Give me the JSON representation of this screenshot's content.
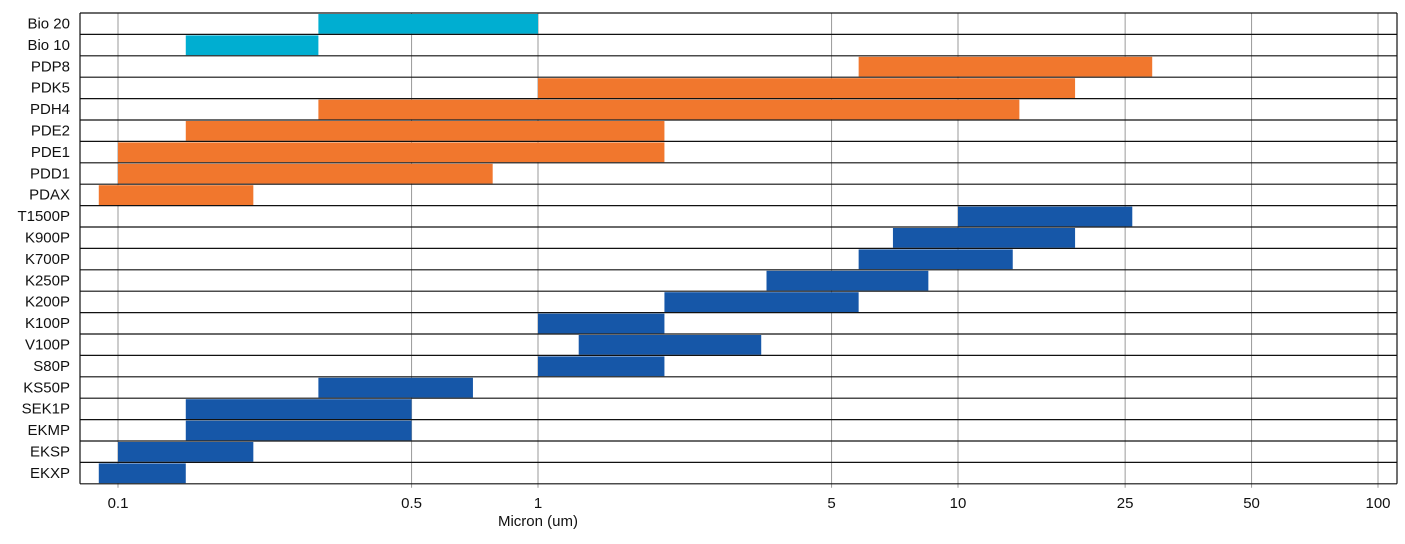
{
  "chart_data": {
    "type": "bar",
    "subtype": "floating-horizontal-range",
    "xlabel": "Micron (um)",
    "x_scale": "log",
    "xlim": [
      0.08,
      110
    ],
    "x_ticks": [
      0.1,
      0.5,
      1,
      5,
      10,
      25,
      50,
      100
    ],
    "x_tick_labels": [
      "0.1",
      "0.5",
      "1",
      "5",
      "10",
      "25",
      "50",
      "100"
    ],
    "grid": true,
    "colors": {
      "bio": "#00AED1",
      "pd": "#F1772D",
      "standard": "#1657A8",
      "grid": "#9a9a9a",
      "row_line": "#111111"
    },
    "categories": [
      "Bio 20",
      "Bio 10",
      "PDP8",
      "PDK5",
      "PDH4",
      "PDE2",
      "PDE1",
      "PDD1",
      "PDAX",
      "T1500P",
      "K900P",
      "K700P",
      "K250P",
      "K200P",
      "K100P",
      "V100P",
      "S80P",
      "KS50P",
      "SEK1P",
      "EKMP",
      "EKSP",
      "EKXP"
    ],
    "ranges": [
      {
        "label": "Bio 20",
        "min": 0.3,
        "max": 1.0,
        "group": "bio"
      },
      {
        "label": "Bio 10",
        "min": 0.145,
        "max": 0.3,
        "group": "bio"
      },
      {
        "label": "PDP8",
        "min": 5.8,
        "max": 29,
        "group": "pd"
      },
      {
        "label": "PDK5",
        "min": 1.0,
        "max": 19,
        "group": "pd"
      },
      {
        "label": "PDH4",
        "min": 0.3,
        "max": 14,
        "group": "pd"
      },
      {
        "label": "PDE2",
        "min": 0.145,
        "max": 2.0,
        "group": "pd"
      },
      {
        "label": "PDE1",
        "min": 0.1,
        "max": 2.0,
        "group": "pd"
      },
      {
        "label": "PDD1",
        "min": 0.1,
        "max": 0.78,
        "group": "pd"
      },
      {
        "label": "PDAX",
        "min": 0.09,
        "max": 0.21,
        "group": "pd"
      },
      {
        "label": "T1500P",
        "min": 10,
        "max": 26,
        "group": "standard"
      },
      {
        "label": "K900P",
        "min": 7,
        "max": 19,
        "group": "standard"
      },
      {
        "label": "K700P",
        "min": 5.8,
        "max": 13.5,
        "group": "standard"
      },
      {
        "label": "K250P",
        "min": 3.5,
        "max": 8.5,
        "group": "standard"
      },
      {
        "label": "K200P",
        "min": 2.0,
        "max": 5.8,
        "group": "standard"
      },
      {
        "label": "K100P",
        "min": 1.0,
        "max": 2.0,
        "group": "standard"
      },
      {
        "label": "V100P",
        "min": 1.25,
        "max": 3.4,
        "group": "standard"
      },
      {
        "label": "S80P",
        "min": 1.0,
        "max": 2.0,
        "group": "standard"
      },
      {
        "label": "KS50P",
        "min": 0.3,
        "max": 0.7,
        "group": "standard"
      },
      {
        "label": "SEK1P",
        "min": 0.145,
        "max": 0.5,
        "group": "standard"
      },
      {
        "label": "EKMP",
        "min": 0.145,
        "max": 0.5,
        "group": "standard"
      },
      {
        "label": "EKSP",
        "min": 0.1,
        "max": 0.21,
        "group": "standard"
      },
      {
        "label": "EKXP",
        "min": 0.09,
        "max": 0.145,
        "group": "standard"
      }
    ]
  }
}
